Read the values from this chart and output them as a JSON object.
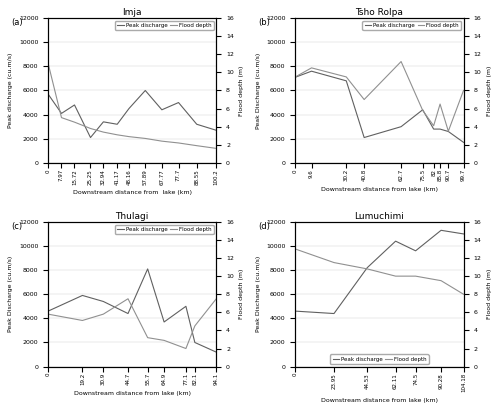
{
  "panels": [
    {
      "label": "(a)",
      "title": "Imja",
      "xlabel": "Downstream distance from  lake (km)",
      "ylabel_left": "Peak discharge (cu.m/s)",
      "ylabel_right": "Flood depth (m)",
      "x_ticks": [
        0,
        7.97,
        15.72,
        25.25,
        32.94,
        41.17,
        48.16,
        57.89,
        67.77,
        77.7,
        88.55,
        100.2
      ],
      "discharge": [
        5700,
        4100,
        4800,
        2100,
        3400,
        3200,
        4500,
        6000,
        4400,
        5000,
        3200,
        2700
      ],
      "flood_depth": [
        11.0,
        5.0,
        4.5,
        3.8,
        3.4,
        3.1,
        2.9,
        2.7,
        2.4,
        2.2,
        1.9,
        1.6
      ],
      "legend_loc": "upper right",
      "ylim_left": [
        0,
        12000
      ],
      "ylim_right": [
        0,
        16
      ],
      "yticks_left": [
        0,
        2000,
        4000,
        6000,
        8000,
        10000,
        12000
      ],
      "yticks_right": [
        0,
        2,
        4,
        6,
        8,
        10,
        12,
        14,
        16
      ]
    },
    {
      "label": "(b)",
      "title": "Tsho Rolpa",
      "xlabel": "Downstream distance from lake (km)",
      "ylabel_left": "Peak Discharge (cu.m/s)",
      "ylabel_right": "Flood depth (m)",
      "x_ticks": [
        0,
        9.6,
        30.2,
        40.8,
        62.7,
        75.5,
        82,
        85.8,
        90.7,
        99.7
      ],
      "discharge": [
        7100,
        7600,
        6800,
        2100,
        3000,
        4400,
        2800,
        2800,
        2600,
        1700
      ],
      "flood_depth": [
        9.5,
        10.5,
        9.5,
        7.0,
        11.2,
        5.8,
        4.1,
        6.5,
        3.5,
        8.0
      ],
      "legend_loc": "upper right",
      "ylim_left": [
        0,
        12000
      ],
      "ylim_right": [
        0,
        16
      ],
      "yticks_left": [
        0,
        2000,
        4000,
        6000,
        8000,
        10000,
        12000
      ],
      "yticks_right": [
        0,
        2,
        4,
        6,
        8,
        10,
        12,
        14,
        16
      ]
    },
    {
      "label": "(c)",
      "title": "Thulagi",
      "xlabel": "Downstream distance from lake (km)",
      "ylabel_left": "Peak Discharge (cu.m/s)",
      "ylabel_right": "Flood depth (m)",
      "x_ticks": [
        0,
        19.2,
        30.9,
        44.7,
        55.7,
        64.9,
        77.1,
        82.1,
        94.1
      ],
      "discharge": [
        4600,
        5900,
        5400,
        4400,
        8100,
        3700,
        5000,
        2000,
        1200
      ],
      "flood_depth": [
        5.8,
        5.1,
        5.8,
        7.5,
        3.2,
        2.9,
        2.0,
        4.5,
        7.5
      ],
      "legend_loc": "upper right",
      "ylim_left": [
        0,
        12000
      ],
      "ylim_right": [
        0,
        16
      ],
      "yticks_left": [
        0,
        2000,
        4000,
        6000,
        8000,
        10000,
        12000
      ],
      "yticks_right": [
        0,
        2,
        4,
        6,
        8,
        10,
        12,
        14,
        16
      ]
    },
    {
      "label": "(d)",
      "title": "Lumuchimi",
      "xlabel": "Downstream distance from lake (km)",
      "ylabel_left": "Peak Discharge (cu.m/s)",
      "ylabel_right": "Flood depth (m)",
      "x_ticks": [
        0,
        23.95,
        44.53,
        62.11,
        74.5,
        90.28,
        104.18
      ],
      "discharge": [
        4600,
        4400,
        8200,
        10400,
        9600,
        11300,
        11000
      ],
      "flood_depth": [
        13.0,
        11.5,
        10.8,
        10.0,
        10.0,
        9.5,
        8.0
      ],
      "legend_loc": "lower center",
      "ylim_left": [
        0,
        12000
      ],
      "ylim_right": [
        0,
        16
      ],
      "yticks_left": [
        0,
        2000,
        4000,
        6000,
        8000,
        10000,
        12000
      ],
      "yticks_right": [
        0,
        2,
        4,
        6,
        8,
        10,
        12,
        14,
        16
      ]
    }
  ],
  "line_color_discharge": "#606060",
  "line_color_flood": "#909090",
  "legend_discharge": "Peak discharge",
  "legend_flood": "Flood depth",
  "fig_bg": "#ffffff"
}
